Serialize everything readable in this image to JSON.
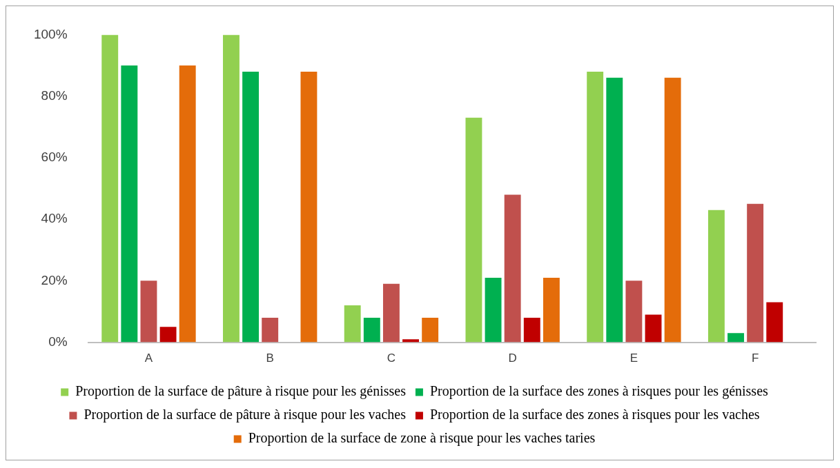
{
  "chart_data": {
    "type": "bar",
    "categories": [
      "A",
      "B",
      "C",
      "D",
      "E",
      "F"
    ],
    "series": [
      {
        "name": "Proportion de la surface de pâture à risque pour les génisses",
        "color": "#92d050",
        "values": [
          100,
          100,
          12,
          73,
          88,
          43
        ]
      },
      {
        "name": "Proportion de la surface des zones à risques pour les génisses",
        "color": "#00b050",
        "values": [
          90,
          88,
          8,
          21,
          86,
          3
        ]
      },
      {
        "name": "Proportion de la surface de pâture à risque pour les vaches",
        "color": "#c0504d",
        "values": [
          20,
          8,
          19,
          48,
          20,
          45
        ]
      },
      {
        "name": "Proportion de la surface des zones à risques pour les vaches",
        "color": "#c00000",
        "values": [
          5,
          0,
          1,
          8,
          9,
          13
        ]
      },
      {
        "name": "Proportion de la surface de zone à risque pour les vaches taries",
        "color": "#e46c0a",
        "values": [
          90,
          88,
          8,
          21,
          86,
          0
        ]
      }
    ],
    "ylim": [
      0,
      100
    ],
    "yticks": [
      {
        "value": 0,
        "label": "0%"
      },
      {
        "value": 20,
        "label": "20%"
      },
      {
        "value": 40,
        "label": "40%"
      },
      {
        "value": 60,
        "label": "60%"
      },
      {
        "value": 80,
        "label": "80%"
      },
      {
        "value": 100,
        "label": "100%"
      }
    ],
    "grid": false,
    "legend": "bottom"
  }
}
